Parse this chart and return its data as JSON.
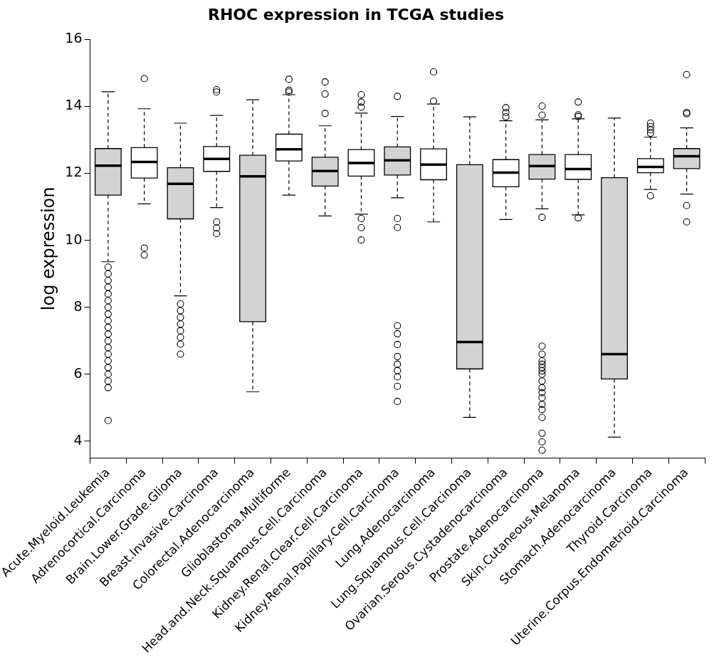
{
  "chart_data": {
    "type": "box",
    "title": "RHOC expression in TCGA studies",
    "ylabel": "log expression",
    "categories": [
      "Acute.Myeloid.Leukemia",
      "Adrenocortical.Carcinoma",
      "Brain.Lower.Grade.Glioma",
      "Breast.Invasive.Carcinoma",
      "Colorectal.Adenocarcinoma",
      "Glioblastoma.Multiforme",
      "Head.and.Neck.Squamous.Cell.Carcinoma",
      "Kidney.Renal.Clear.Cell.Carcinoma",
      "Kidney.Renal.Papillary.Cell.Carcinoma",
      "Lung.Adenocarcinoma",
      "Lung.Squamous.Cell.Carcinoma",
      "Ovarian.Serous.Cystadenocarcinoma",
      "Prostate.Adenocarcinoma",
      "Skin.Cutaneous.Melanoma",
      "Stomach.Adenocarcinoma",
      "Thyroid.Carcinoma",
      "Uterine.Corpus.Endometrioid.Carcinoma"
    ],
    "colors": [
      "#d3d3d3",
      "#ffffff",
      "#d3d3d3",
      "#ffffff",
      "#d3d3d3",
      "#ffffff",
      "#d3d3d3",
      "#ffffff",
      "#d3d3d3",
      "#ffffff",
      "#d3d3d3",
      "#ffffff",
      "#d3d3d3",
      "#ffffff",
      "#d3d3d3",
      "#ffffff",
      "#d3d3d3"
    ],
    "boxes": [
      {
        "low": 9.36,
        "q1": 11.35,
        "median": 12.23,
        "q3": 12.74,
        "high": 14.44,
        "outliers": [
          9.2,
          9.0,
          8.8,
          8.6,
          8.4,
          8.2,
          8.0,
          7.8,
          7.6,
          7.4,
          7.2,
          7.0,
          6.8,
          6.6,
          6.4,
          6.2,
          6.0,
          5.8,
          5.6,
          4.62
        ]
      },
      {
        "low": 11.09,
        "q1": 11.86,
        "median": 12.34,
        "q3": 12.77,
        "high": 13.93,
        "outliers": [
          14.83,
          9.77,
          9.56
        ]
      },
      {
        "low": 8.34,
        "q1": 10.64,
        "median": 11.69,
        "q3": 12.17,
        "high": 13.5,
        "outliers": [
          8.1,
          7.9,
          7.7,
          7.5,
          7.3,
          7.1,
          6.9,
          6.6
        ]
      },
      {
        "low": 10.98,
        "q1": 12.06,
        "median": 12.43,
        "q3": 12.8,
        "high": 13.73,
        "outliers": [
          14.5,
          14.43,
          10.55,
          10.37,
          10.2
        ]
      },
      {
        "low": 5.48,
        "q1": 7.57,
        "median": 11.91,
        "q3": 12.54,
        "high": 14.2
      },
      {
        "low": 11.35,
        "q1": 12.37,
        "median": 12.72,
        "q3": 13.17,
        "high": 14.35,
        "outliers": [
          14.81,
          14.48,
          14.43
        ]
      },
      {
        "low": 10.73,
        "q1": 11.62,
        "median": 12.07,
        "q3": 12.48,
        "high": 13.42,
        "outliers": [
          14.73,
          14.37,
          13.79
        ]
      },
      {
        "low": 10.78,
        "q1": 11.92,
        "median": 12.31,
        "q3": 12.71,
        "high": 13.8,
        "outliers": [
          14.35,
          14.13,
          13.98,
          10.65,
          10.38,
          10.01
        ]
      },
      {
        "low": 11.27,
        "q1": 11.95,
        "median": 12.39,
        "q3": 12.79,
        "high": 13.7,
        "outliers": [
          14.3,
          10.65,
          10.38,
          7.45,
          7.21,
          6.89,
          6.53,
          6.3,
          6.11,
          5.92,
          5.64,
          5.19
        ]
      },
      {
        "low": 10.55,
        "q1": 11.81,
        "median": 12.26,
        "q3": 12.73,
        "high": 14.07,
        "outliers": [
          15.03,
          14.16
        ]
      },
      {
        "low": 4.71,
        "q1": 6.16,
        "median": 6.96,
        "q3": 12.26,
        "high": 13.69
      },
      {
        "low": 10.62,
        "q1": 11.6,
        "median": 12.02,
        "q3": 12.41,
        "high": 13.57,
        "outliers": [
          13.96,
          13.82,
          13.69
        ]
      },
      {
        "low": 10.94,
        "q1": 11.83,
        "median": 12.22,
        "q3": 12.56,
        "high": 13.6,
        "outliers": [
          14.01,
          13.74,
          10.69,
          6.84,
          6.6,
          6.4,
          6.3,
          6.2,
          6.1,
          6.0,
          5.8,
          5.6,
          5.45,
          5.3,
          5.1,
          4.95,
          4.71,
          4.24,
          3.98,
          3.73
        ]
      },
      {
        "low": 10.76,
        "q1": 11.82,
        "median": 12.13,
        "q3": 12.56,
        "high": 13.63,
        "outliers": [
          14.13,
          13.75,
          13.7,
          10.67
        ]
      },
      {
        "low": 4.12,
        "q1": 5.86,
        "median": 6.6,
        "q3": 11.87,
        "high": 13.65
      },
      {
        "low": 11.52,
        "q1": 12.02,
        "median": 12.19,
        "q3": 12.44,
        "high": 13.08,
        "outliers": [
          13.5,
          13.4,
          13.3,
          13.2,
          11.33
        ]
      },
      {
        "low": 11.38,
        "q1": 12.14,
        "median": 12.51,
        "q3": 12.74,
        "high": 13.36,
        "outliers": [
          14.95,
          13.82,
          13.78,
          11.04,
          10.55
        ]
      }
    ],
    "ylim": [
      3.5,
      16
    ],
    "yticks": [
      4,
      6,
      8,
      10,
      12,
      14,
      16
    ],
    "marker": "circle"
  }
}
